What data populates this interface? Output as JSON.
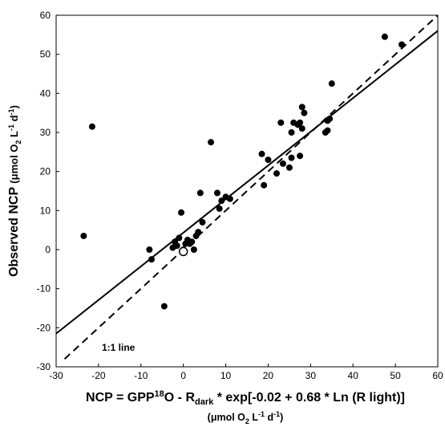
{
  "chart_data": {
    "type": "scatter",
    "xlim": [
      -30,
      60
    ],
    "ylim": [
      -30,
      60
    ],
    "xticks": [
      "-30",
      "-20",
      "-10",
      "0",
      "10",
      "20",
      "30",
      "40",
      "50",
      "60"
    ],
    "yticks": [
      "-30",
      "-20",
      "-10",
      "0",
      "10",
      "20",
      "30",
      "40",
      "50",
      "60"
    ],
    "ylabel": {
      "main": "Observed NCP",
      "unit": "(μmol O",
      "unit_sub": "2",
      "unit_mid": " L",
      "unit_sup1": "-1",
      "unit_mid2": " d",
      "unit_sup2": "-1",
      "unit_end": ")"
    },
    "xlabel": {
      "p1": "NCP =  GPP",
      "sup": "18",
      "p2": "O - R",
      "sub": "dark",
      "p3": " * exp[-0.02 + 0.68 * Ln (R light)]"
    },
    "xunit": {
      "p1": "(μmol O",
      "sub": "2",
      "p2": " L",
      "sup1": "-1",
      "p3": " d",
      "sup2": "-1",
      "p4": ")"
    },
    "annotation": "1:1 line",
    "lines": [
      {
        "style": "solid",
        "x": [
          -30,
          60
        ],
        "y": [
          -21.5,
          56
        ]
      },
      {
        "style": "dashed",
        "x": [
          -28,
          60
        ],
        "y": [
          -28,
          60
        ]
      }
    ],
    "points": [
      [
        -23.5,
        3.5
      ],
      [
        -21.5,
        31.5
      ],
      [
        -8,
        0
      ],
      [
        -7.5,
        -2.5
      ],
      [
        -4.5,
        -14.5
      ],
      [
        -2.5,
        0.5
      ],
      [
        -2,
        2
      ],
      [
        -1.5,
        1
      ],
      [
        -1,
        3
      ],
      [
        -0.5,
        9.5
      ],
      [
        0,
        0
      ],
      [
        0.5,
        1.5
      ],
      [
        1,
        2.5
      ],
      [
        1.5,
        1.5
      ],
      [
        2,
        2
      ],
      [
        2.5,
        0
      ],
      [
        3,
        3.5
      ],
      [
        3.5,
        4.5
      ],
      [
        4,
        14.5
      ],
      [
        4.5,
        7
      ],
      [
        6.5,
        27.5
      ],
      [
        8,
        14.5
      ],
      [
        8.5,
        10.5
      ],
      [
        9,
        12.5
      ],
      [
        10,
        13.5
      ],
      [
        11,
        13
      ],
      [
        18.5,
        24.5
      ],
      [
        19,
        16.5
      ],
      [
        20,
        23
      ],
      [
        22,
        19.5
      ],
      [
        23,
        32.5
      ],
      [
        23.5,
        22
      ],
      [
        25,
        21
      ],
      [
        25.5,
        23.5
      ],
      [
        25.5,
        30
      ],
      [
        26,
        32.5
      ],
      [
        27,
        32
      ],
      [
        27.5,
        24
      ],
      [
        27.5,
        32.5
      ],
      [
        28,
        36.5
      ],
      [
        28,
        31
      ],
      [
        28.5,
        35
      ],
      [
        33.5,
        30
      ],
      [
        34,
        33
      ],
      [
        34,
        30.5
      ],
      [
        34.5,
        33.5
      ],
      [
        35,
        42.5
      ],
      [
        47.5,
        54.5
      ],
      [
        51.5,
        52.5
      ]
    ],
    "open_point": [
      0,
      -0.5
    ]
  }
}
